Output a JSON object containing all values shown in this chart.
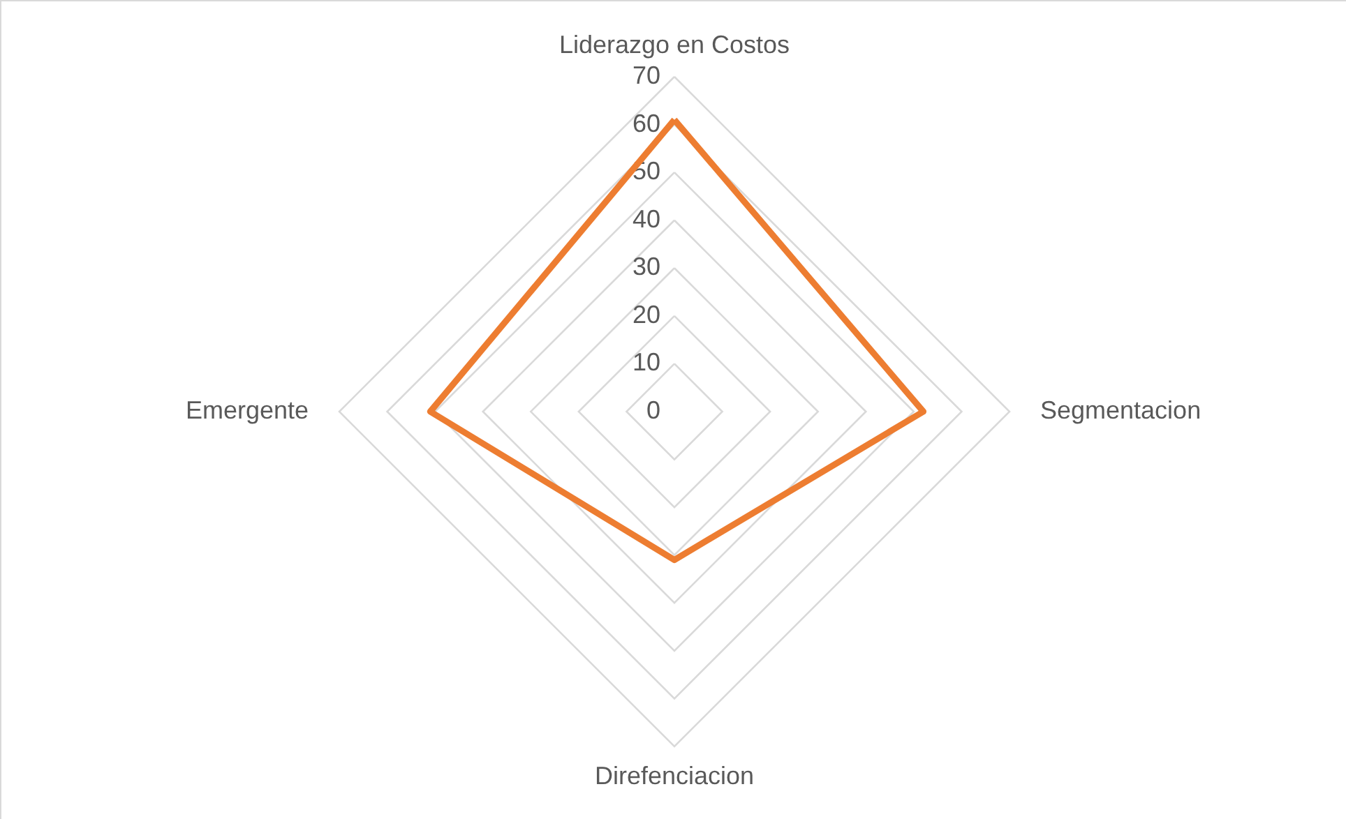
{
  "chart_data": {
    "type": "radar",
    "categories": [
      "Liderazgo en Costos",
      "Segmentacion",
      "Direfenciacion",
      "Emergente"
    ],
    "series": [
      {
        "color": "#ed7d31",
        "values": [
          61,
          52,
          31,
          51
        ]
      }
    ],
    "ylim": [
      0,
      70
    ],
    "yticks": [
      0,
      10,
      20,
      30,
      40,
      50,
      60,
      70
    ],
    "grid": true,
    "marker": "none",
    "line_style": "solid"
  }
}
